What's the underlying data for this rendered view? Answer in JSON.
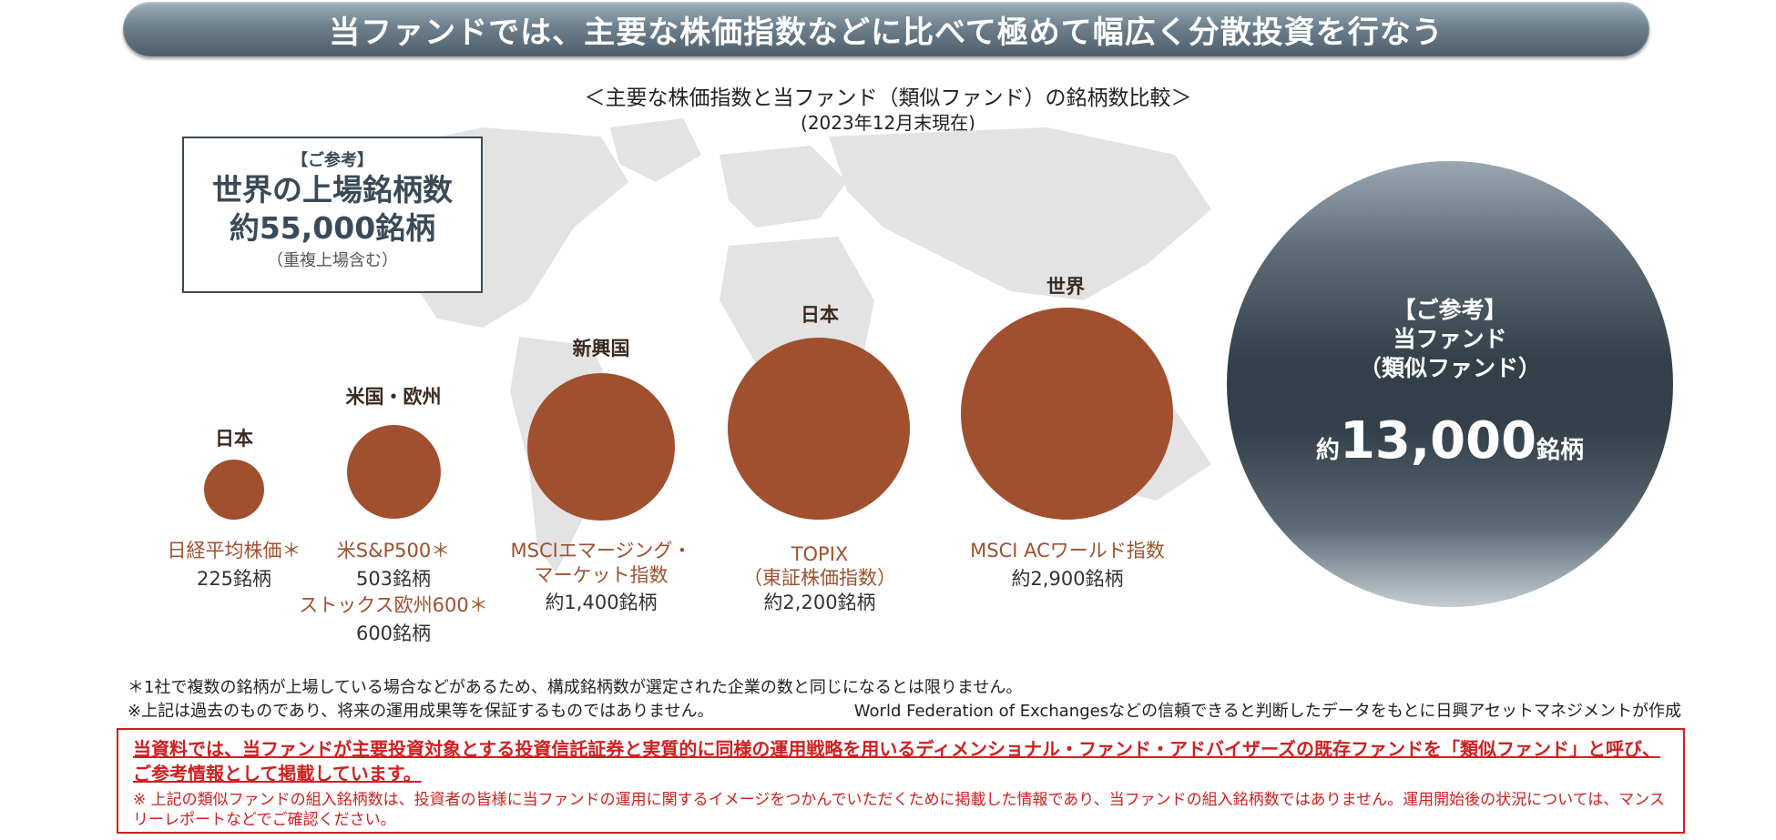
{
  "banner": {
    "title": "当ファンドでは、主要な株価指数などに比べて極めて幅広く分散投資を行なう"
  },
  "heading": {
    "line1": "＜主要な株価指数と当ファンド（類似ファンド）の銘柄数比較＞",
    "line2": "(2023年12月末現在)"
  },
  "reference_box": {
    "tag": "【ご参考】",
    "title": "世界の上場銘柄数",
    "count": "約55,000銘柄",
    "note": "（重複上場含む）"
  },
  "indices": [
    {
      "region": "日本",
      "name": "日経平均株価＊",
      "count": "225銘柄"
    },
    {
      "region": "米国・欧州",
      "name": "米S&P500＊",
      "count": "503銘柄",
      "name2": "ストックス欧州600＊",
      "count2": "600銘柄"
    },
    {
      "region": "新興国",
      "name": "MSCIエマージング・",
      "name_line2": "マーケット指数",
      "count": "約1,400銘柄"
    },
    {
      "region": "日本",
      "name": "TOPIX",
      "name_line2": "（東証株価指数）",
      "count": "約2,200銘柄"
    },
    {
      "region": "世界",
      "name": "MSCI ACワールド指数",
      "count": "約2,900銘柄"
    }
  ],
  "fund_circle": {
    "tag": "【ご参考】",
    "name": "当ファンド",
    "sub": "（類似ファンド）",
    "prefix": "約",
    "number": "13,000",
    "suffix": "銘柄"
  },
  "notes": {
    "n1": "＊1社で複数の銘柄が上場している場合などがあるため、構成銘柄数が選定された企業の数と同じになるとは限りません。",
    "n2": "※上記は過去のものであり、将来の運用成果等を保証するものではありません。",
    "source": "World Federation of Exchangesなどの信頼できると判断したデータをもとに日興アセットマネジメントが作成"
  },
  "disclaimer": {
    "main": "当資料では、当ファンドが主要投資対象とする投資信託証券と実質的に同様の運用戦略を用いるディメンショナル・ファンド・アドバイザーズの既存ファンドを「類似ファンド」と呼び、ご参考情報として掲載しています。",
    "sub": "※ 上記の類似ファンドの組入銘柄数は、投資者の皆様に当ファンドの運用に関するイメージをつかんでいただくために掲載した情報であり、当ファンドの組入銘柄数ではありません。運用開始後の状況については、マンスリーレポートなどでご確認ください。"
  },
  "colors": {
    "accent": "#a0502f",
    "dark": "#33404a",
    "warning": "#d02020"
  }
}
